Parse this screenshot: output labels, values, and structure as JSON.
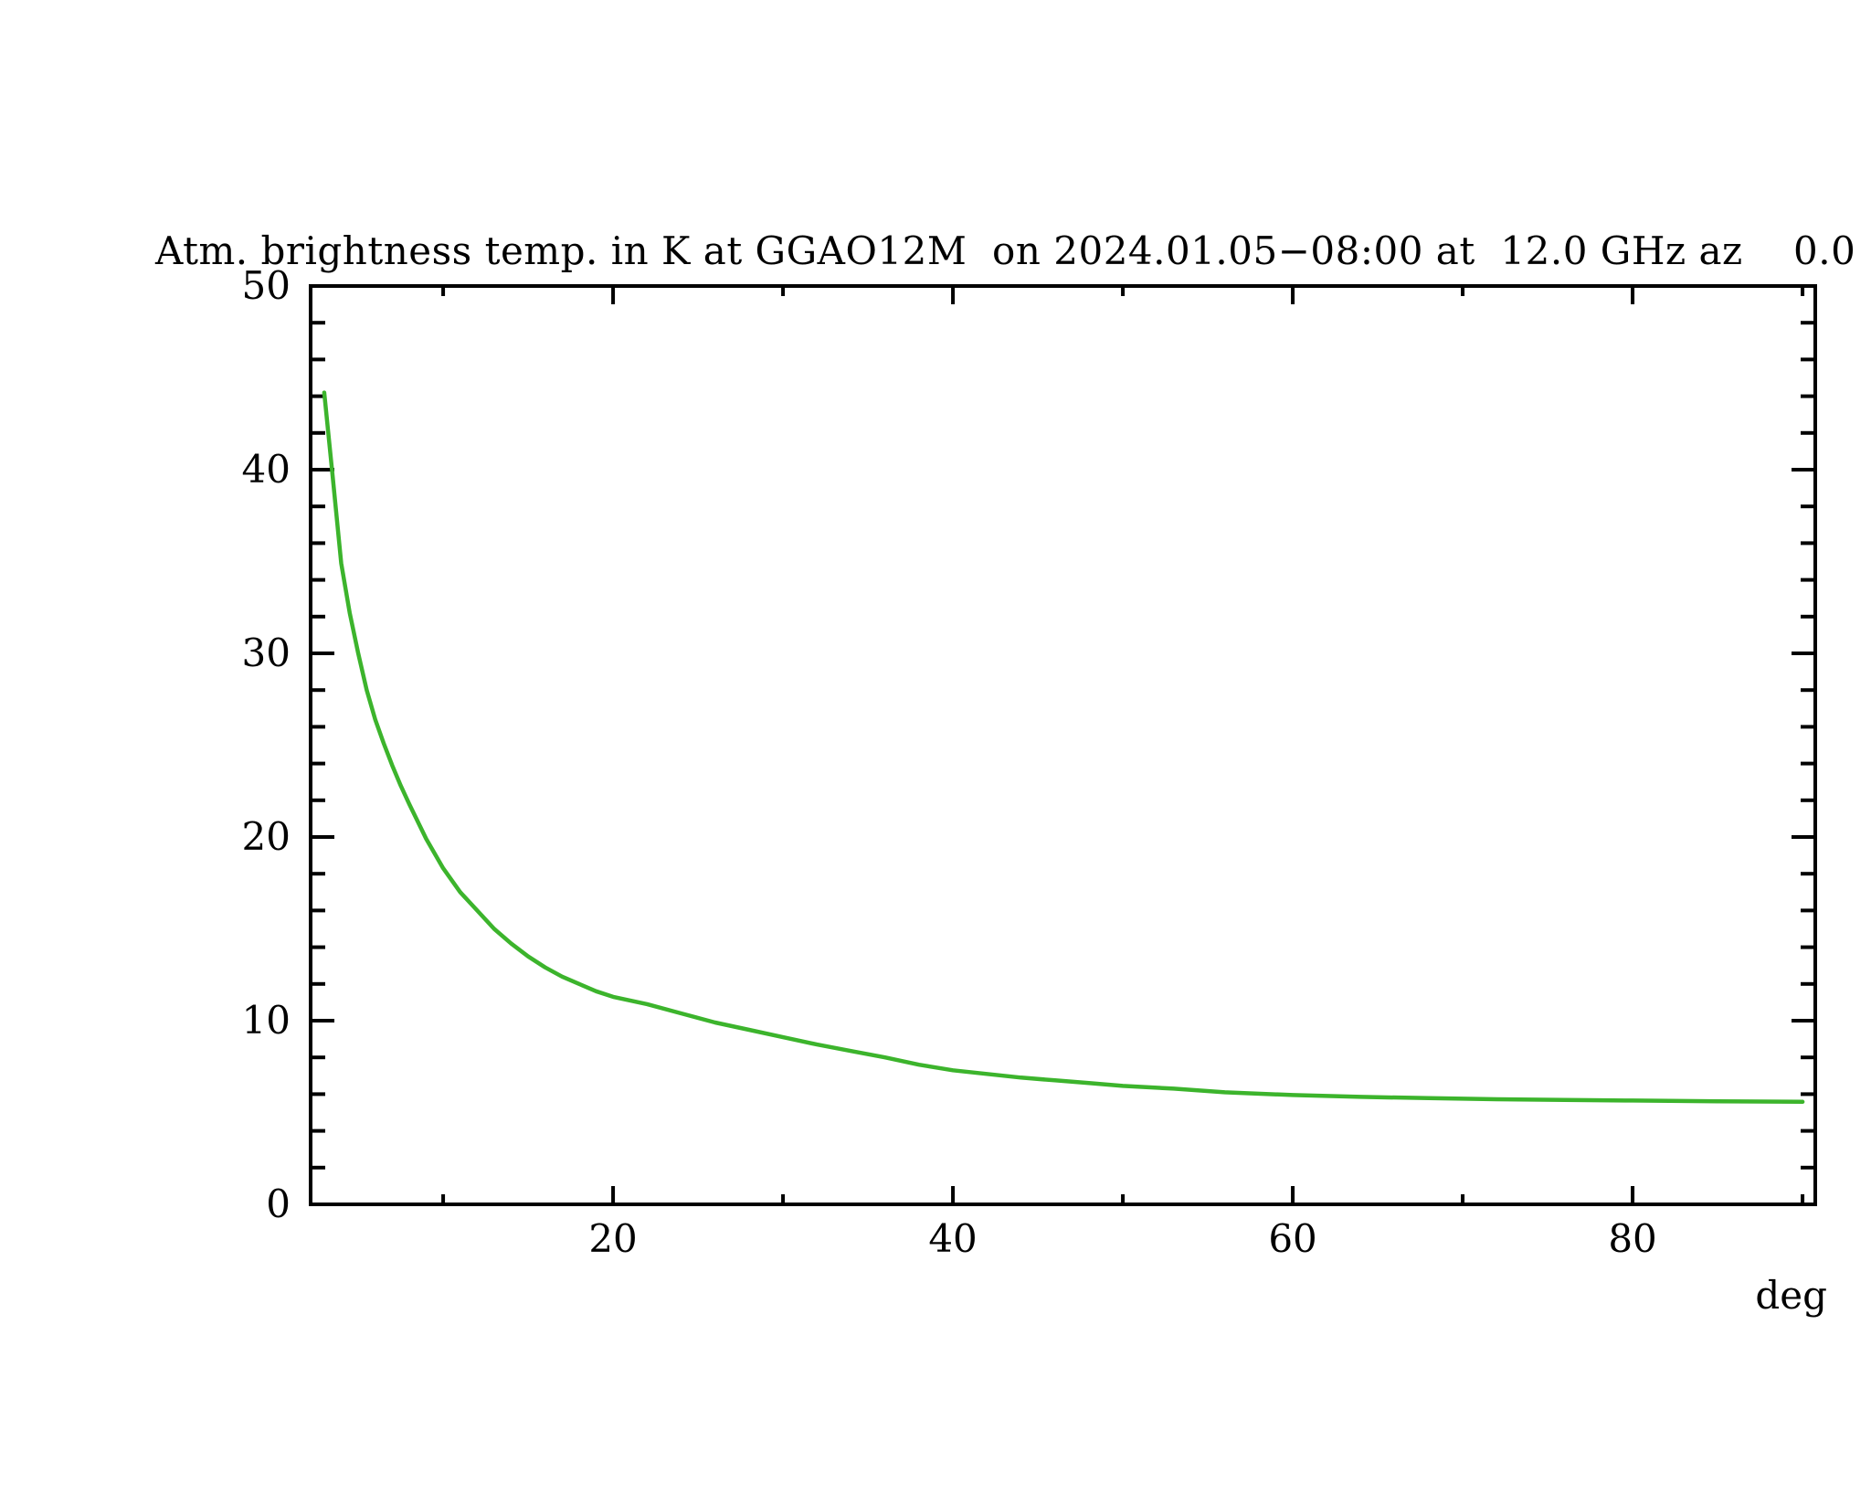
{
  "chart_data": {
    "type": "line",
    "title": "Atm. brightness temp. in K at GGAO12M  on 2024.01.05−08:00 at  12.0 GHz az    0.0",
    "xlabel": "deg",
    "ylabel": "",
    "site": "GGAO12M",
    "datetime": "2024.01.05-08:00",
    "frequency_ghz": 12.0,
    "azimuth_deg": 0.0,
    "xlim": [
      2.2,
      90.75
    ],
    "ylim": [
      0,
      50
    ],
    "x_major_ticks": [
      20,
      40,
      60,
      80
    ],
    "x_minor_ticks": [
      10,
      30,
      50,
      70,
      90
    ],
    "y_major_ticks": [
      0,
      10,
      20,
      30,
      40,
      50
    ],
    "y_minor_step": 2,
    "grid": false,
    "legend": "none",
    "axis_color": "#000000",
    "background": "#ffffff",
    "series": [
      {
        "name": "atmospheric-brightness-temperature",
        "color": "#3cb42c",
        "x_unit": "deg elevation",
        "y_unit": "K",
        "points": [
          [
            3.0,
            44.2
          ],
          [
            3.5,
            39.6
          ],
          [
            4.0,
            34.9
          ],
          [
            4.5,
            32.2
          ],
          [
            5.0,
            30.0
          ],
          [
            5.5,
            28.0
          ],
          [
            6.0,
            26.4
          ],
          [
            6.5,
            25.1
          ],
          [
            7.0,
            23.9
          ],
          [
            7.5,
            22.8
          ],
          [
            8.0,
            21.8
          ],
          [
            9.0,
            19.9
          ],
          [
            10.0,
            18.3
          ],
          [
            11.0,
            17.0
          ],
          [
            12.0,
            16.0
          ],
          [
            13.0,
            15.0
          ],
          [
            14.0,
            14.2
          ],
          [
            15.0,
            13.5
          ],
          [
            16.0,
            12.9
          ],
          [
            17.0,
            12.4
          ],
          [
            18.0,
            12.0
          ],
          [
            19.0,
            11.6
          ],
          [
            20.0,
            11.3
          ],
          [
            22.0,
            10.9
          ],
          [
            24.0,
            10.4
          ],
          [
            26.0,
            9.9
          ],
          [
            28.0,
            9.5
          ],
          [
            30.0,
            9.1
          ],
          [
            32.0,
            8.7
          ],
          [
            34.0,
            8.35
          ],
          [
            36.0,
            8.0
          ],
          [
            38.0,
            7.6
          ],
          [
            40.0,
            7.3
          ],
          [
            42.0,
            7.1
          ],
          [
            44.0,
            6.9
          ],
          [
            46.0,
            6.75
          ],
          [
            48.0,
            6.6
          ],
          [
            50.0,
            6.45
          ],
          [
            53.0,
            6.3
          ],
          [
            56.0,
            6.1
          ],
          [
            60.0,
            5.95
          ],
          [
            64.0,
            5.85
          ],
          [
            68.0,
            5.78
          ],
          [
            72.0,
            5.72
          ],
          [
            76.0,
            5.68
          ],
          [
            80.0,
            5.65
          ],
          [
            85.0,
            5.61
          ],
          [
            90.0,
            5.58
          ]
        ]
      }
    ]
  }
}
